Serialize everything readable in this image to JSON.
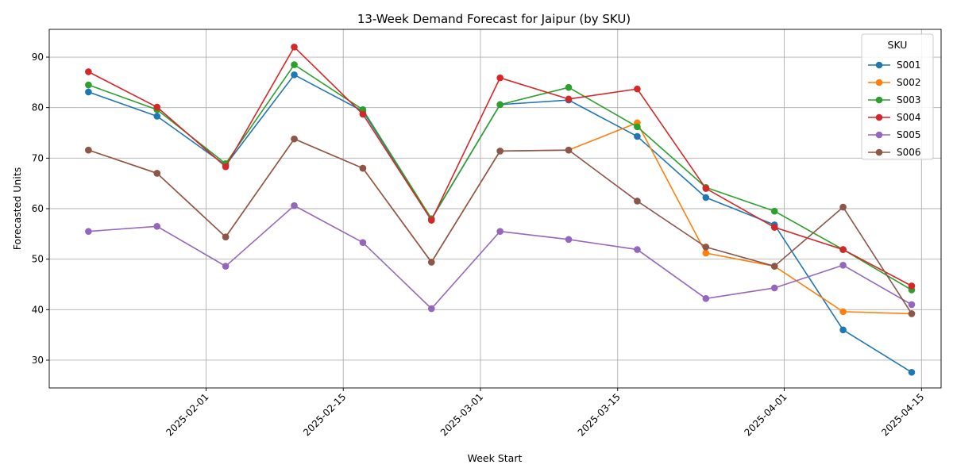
{
  "chart_data": {
    "type": "line",
    "title": "13-Week Demand Forecast for Jaipur (by SKU)",
    "xlabel": "Week Start",
    "ylabel": "Forecasted Units",
    "legend_title": "SKU",
    "legend_position": "top-right",
    "grid": true,
    "x": [
      "2025-01-20",
      "2025-01-27",
      "2025-02-03",
      "2025-02-10",
      "2025-02-17",
      "2025-02-24",
      "2025-03-03",
      "2025-03-10",
      "2025-03-17",
      "2025-03-24",
      "2025-03-31",
      "2025-04-07",
      "2025-04-14"
    ],
    "xlim": [
      "2025-01-16",
      "2025-04-17"
    ],
    "ylim": [
      24.5,
      95.5
    ],
    "x_ticks": [
      "2025-02-01",
      "2025-02-15",
      "2025-03-01",
      "2025-03-15",
      "2025-04-01",
      "2025-04-15"
    ],
    "y_ticks": [
      30,
      40,
      50,
      60,
      70,
      80,
      90
    ],
    "series": [
      {
        "name": "S001",
        "color": "#1f77b4",
        "values": [
          83.1,
          78.3,
          68.6,
          86.5,
          79.3,
          57.9,
          80.6,
          81.5,
          74.3,
          62.2,
          56.8,
          36.0,
          27.6
        ]
      },
      {
        "name": "S002",
        "color": "#ff7f0e",
        "values": [
          71.6,
          67.0,
          54.4,
          73.8,
          68.0,
          49.4,
          71.4,
          71.6,
          77.0,
          51.2,
          48.6,
          39.6,
          39.2
        ]
      },
      {
        "name": "S003",
        "color": "#2ca02c",
        "values": [
          84.5,
          79.6,
          68.9,
          88.5,
          79.6,
          58.0,
          80.6,
          84.0,
          76.2,
          64.2,
          59.5,
          51.9,
          43.9
        ]
      },
      {
        "name": "S004",
        "color": "#d62728",
        "values": [
          87.1,
          80.1,
          68.3,
          92.0,
          78.7,
          57.7,
          85.9,
          81.7,
          83.7,
          64.0,
          56.3,
          51.9,
          44.7
        ]
      },
      {
        "name": "S005",
        "color": "#9467bd",
        "values": [
          55.5,
          56.5,
          48.6,
          60.6,
          53.3,
          40.2,
          55.5,
          53.9,
          51.9,
          42.2,
          44.3,
          48.8,
          41.0
        ]
      },
      {
        "name": "S006",
        "color": "#8c564b",
        "values": [
          71.6,
          67.0,
          54.4,
          73.8,
          68.0,
          49.4,
          71.4,
          71.6,
          61.5,
          52.4,
          48.6,
          60.3,
          39.2
        ]
      }
    ]
  }
}
